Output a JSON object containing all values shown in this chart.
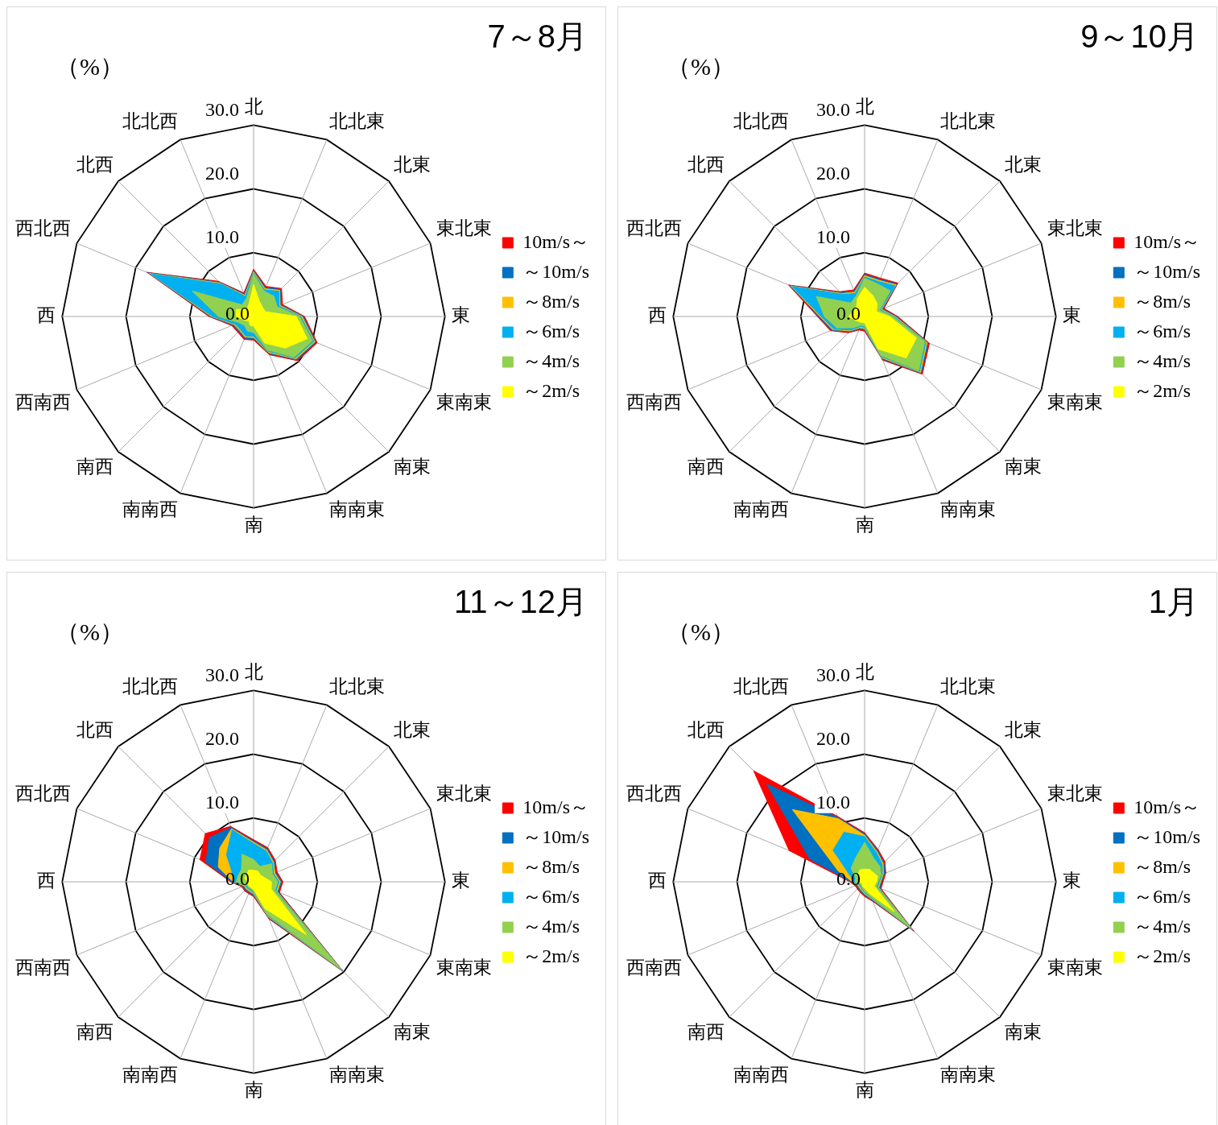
{
  "chart_data": [
    {
      "type": "radar",
      "title": "7～8月",
      "ylabel": "（%）",
      "categories": [
        "北",
        "北北東",
        "北東",
        "東北東",
        "東",
        "東南東",
        "南東",
        "南南東",
        "南",
        "南南西",
        "南西",
        "西南西",
        "西",
        "西北西",
        "北西",
        "北北西"
      ],
      "ylim": [
        0,
        30
      ],
      "yticks": [
        {
          "value": 0,
          "label": "0.0"
        },
        {
          "value": 10,
          "label": "10.0"
        },
        {
          "value": 20,
          "label": "20.0"
        },
        {
          "value": 30,
          "label": "30.0"
        }
      ],
      "grid": true,
      "legend": "right",
      "marker": "none",
      "series": [
        {
          "name": "10m/s～",
          "color": "#ff0000",
          "values": [
            7.4,
            5.1,
            6.2,
            4.9,
            8.0,
            10.8,
            9.8,
            6.5,
            3.7,
            3.9,
            3.5,
            3.7,
            7.0,
            18.1,
            7.8,
            4.0
          ]
        },
        {
          "name": "～10m/s",
          "color": "#0070c0",
          "values": [
            7.2,
            4.9,
            6.0,
            4.7,
            7.8,
            10.6,
            9.6,
            6.3,
            3.5,
            3.7,
            3.3,
            3.5,
            6.8,
            17.9,
            7.6,
            3.8
          ]
        },
        {
          "name": "～8m/s",
          "color": "#ffc000",
          "values": [
            7.0,
            4.7,
            5.8,
            4.5,
            7.6,
            10.4,
            9.4,
            6.1,
            3.3,
            3.5,
            3.1,
            3.3,
            6.6,
            17.7,
            7.4,
            3.6
          ]
        },
        {
          "name": "～6m/s",
          "color": "#00b0f0",
          "values": [
            6.8,
            4.5,
            5.6,
            4.3,
            7.4,
            10.2,
            9.2,
            5.9,
            3.1,
            3.3,
            2.9,
            3.1,
            6.4,
            17.5,
            7.2,
            3.4
          ]
        },
        {
          "name": "～4m/s",
          "color": "#92d050",
          "values": [
            6.6,
            4.3,
            4.5,
            4.0,
            7.2,
            10.0,
            9.0,
            5.7,
            2.5,
            2.5,
            2.0,
            2.5,
            5.5,
            10.4,
            2.6,
            3.0
          ]
        },
        {
          "name": "～2m/s",
          "color": "#ffff00",
          "values": [
            5.0,
            2.5,
            2.0,
            2.0,
            6.7,
            9.1,
            7.0,
            4.5,
            1.5,
            1.5,
            1.0,
            1.5,
            2.7,
            2.9,
            1.5,
            2.0
          ]
        }
      ]
    },
    {
      "type": "radar",
      "title": "9～10月",
      "ylabel": "（%）",
      "categories": [
        "北",
        "北北東",
        "北東",
        "東北東",
        "東",
        "東南東",
        "南東",
        "南南東",
        "南",
        "南南西",
        "南西",
        "西南西",
        "西",
        "西北西",
        "北西",
        "北北西"
      ],
      "ylim": [
        0,
        30
      ],
      "yticks": [
        {
          "value": 0,
          "label": "0.0"
        },
        {
          "value": 10,
          "label": "10.0"
        },
        {
          "value": 20,
          "label": "20.0"
        },
        {
          "value": 30,
          "label": "30.0"
        }
      ],
      "grid": true,
      "legend": "right",
      "marker": "none",
      "series": [
        {
          "name": "10m/s～",
          "color": "#ff0000",
          "values": [
            6.8,
            6.5,
            7.4,
            3.3,
            5.2,
            11.0,
            12.8,
            7.4,
            2.3,
            2.3,
            3.6,
            5.8,
            7.4,
            12.9,
            5.5,
            4.5
          ]
        },
        {
          "name": "～10m/s",
          "color": "#0070c0",
          "values": [
            6.6,
            6.3,
            7.2,
            3.1,
            5.0,
            10.8,
            12.6,
            7.2,
            2.1,
            2.1,
            3.4,
            5.6,
            7.2,
            12.7,
            5.3,
            4.3
          ]
        },
        {
          "name": "～8m/s",
          "color": "#ffc000",
          "values": [
            6.4,
            6.1,
            7.0,
            2.9,
            4.8,
            10.6,
            12.4,
            7.0,
            1.9,
            1.9,
            3.2,
            5.4,
            7.0,
            12.5,
            5.1,
            4.1
          ]
        },
        {
          "name": "～6m/s",
          "color": "#00b0f0",
          "values": [
            6.2,
            5.9,
            6.8,
            2.7,
            4.6,
            10.4,
            12.2,
            6.8,
            1.7,
            1.7,
            3.0,
            5.2,
            6.8,
            12.3,
            4.9,
            3.9
          ]
        },
        {
          "name": "～4m/s",
          "color": "#92d050",
          "values": [
            6.0,
            5.5,
            5.7,
            2.5,
            4.4,
            10.2,
            12.0,
            6.6,
            1.5,
            1.5,
            2.5,
            4.7,
            6.3,
            8.2,
            3.0,
            3.5
          ]
        },
        {
          "name": "～2m/s",
          "color": "#ffff00",
          "values": [
            4.6,
            3.5,
            2.8,
            2.0,
            3.9,
            8.8,
            9.2,
            5.5,
            1.0,
            1.0,
            1.2,
            1.5,
            2.5,
            2.0,
            1.8,
            3.0
          ]
        }
      ]
    },
    {
      "type": "radar",
      "title": "11～12月",
      "ylabel": "（%）",
      "categories": [
        "北",
        "北北東",
        "北東",
        "東北東",
        "東",
        "東南東",
        "南東",
        "南南東",
        "南",
        "南南西",
        "南西",
        "西南西",
        "西",
        "西北西",
        "北西",
        "北北西"
      ],
      "ylim": [
        0,
        30
      ],
      "yticks": [
        {
          "value": 0,
          "label": "0.0"
        },
        {
          "value": 10,
          "label": "10.0"
        },
        {
          "value": 20,
          "label": "20.0"
        },
        {
          "value": 30,
          "label": "30.0"
        }
      ],
      "grid": true,
      "legend": "right",
      "marker": "none",
      "series": [
        {
          "name": "10m/s～",
          "color": "#ff0000",
          "values": [
            6.6,
            5.8,
            4.8,
            4.0,
            4.6,
            4.4,
            20.0,
            6.3,
            2.3,
            2.0,
            2.0,
            2.0,
            3.6,
            9.1,
            10.7,
            9.4
          ]
        },
        {
          "name": "～10m/s",
          "color": "#0070c0",
          "values": [
            6.4,
            5.6,
            4.6,
            3.8,
            4.4,
            4.2,
            19.8,
            6.1,
            2.1,
            1.8,
            1.8,
            1.8,
            3.4,
            8.1,
            9.8,
            9.2
          ]
        },
        {
          "name": "～8m/s",
          "color": "#ffc000",
          "values": [
            6.2,
            5.4,
            4.4,
            3.6,
            4.2,
            4.0,
            19.6,
            5.9,
            1.9,
            1.6,
            1.6,
            1.6,
            3.2,
            6.0,
            7.5,
            9.0
          ]
        },
        {
          "name": "～6m/s",
          "color": "#00b0f0",
          "values": [
            6.0,
            5.2,
            4.2,
            3.4,
            4.0,
            3.8,
            19.4,
            5.7,
            1.7,
            1.4,
            1.4,
            1.4,
            3.0,
            3.6,
            6.0,
            8.8
          ]
        },
        {
          "name": "～4m/s",
          "color": "#92d050",
          "values": [
            3.5,
            2.6,
            4.0,
            3.2,
            3.8,
            3.6,
            19.2,
            5.5,
            1.5,
            1.2,
            1.2,
            1.2,
            2.7,
            2.6,
            2.7,
            4.7
          ]
        },
        {
          "name": "～2m/s",
          "color": "#ffff00",
          "values": [
            1.8,
            1.8,
            1.5,
            1.8,
            2.8,
            3.0,
            11.7,
            4.5,
            1.2,
            1.0,
            1.0,
            1.0,
            1.0,
            1.5,
            1.5,
            2.0
          ]
        }
      ]
    },
    {
      "type": "radar",
      "title": "1月",
      "ylabel": "（%）",
      "categories": [
        "北",
        "北北東",
        "北東",
        "東北東",
        "東",
        "東南東",
        "南東",
        "南南東",
        "南",
        "南南西",
        "南西",
        "西南西",
        "西",
        "西北西",
        "北西",
        "北北西"
      ],
      "ylim": [
        0,
        30
      ],
      "yticks": [
        {
          "value": 0,
          "label": "0.0"
        },
        {
          "value": 10,
          "label": "10.0"
        },
        {
          "value": 20,
          "label": "20.0"
        },
        {
          "value": 30,
          "label": "30.0"
        }
      ],
      "grid": true,
      "legend": "right",
      "marker": "none",
      "series": [
        {
          "name": "10m/s～",
          "color": "#ff0000",
          "values": [
            7.7,
            5.5,
            4.5,
            3.6,
            2.9,
            2.8,
            11.0,
            3.3,
            2.3,
            1.8,
            1.6,
            1.6,
            2.3,
            12.8,
            24.6,
            11.1
          ]
        },
        {
          "name": "～10m/s",
          "color": "#0070c0",
          "values": [
            7.5,
            5.3,
            4.3,
            3.4,
            2.7,
            2.6,
            10.8,
            3.1,
            2.1,
            1.6,
            1.4,
            1.4,
            2.1,
            9.3,
            21.7,
            10.9
          ]
        },
        {
          "name": "～8m/s",
          "color": "#ffc000",
          "values": [
            7.3,
            5.1,
            4.1,
            3.2,
            2.5,
            2.4,
            10.6,
            2.9,
            1.9,
            1.4,
            1.2,
            1.2,
            1.9,
            4.5,
            16.0,
            10.7
          ]
        },
        {
          "name": "～6m/s",
          "color": "#00b0f0",
          "values": [
            7.1,
            4.9,
            3.9,
            3.0,
            2.3,
            2.2,
            10.4,
            2.7,
            1.7,
            1.2,
            1.0,
            1.0,
            1.7,
            2.4,
            7.0,
            8.4
          ]
        },
        {
          "name": "～4m/s",
          "color": "#92d050",
          "values": [
            6.2,
            3.9,
            3.4,
            2.8,
            2.1,
            2.0,
            10.2,
            2.5,
            1.5,
            1.0,
            0.8,
            0.8,
            1.5,
            1.5,
            3.0,
            3.9
          ]
        },
        {
          "name": "～2m/s",
          "color": "#ffff00",
          "values": [
            2.0,
            2.1,
            2.0,
            2.2,
            1.9,
            1.6,
            6.6,
            2.0,
            1.0,
            0.8,
            0.5,
            0.5,
            1.0,
            1.0,
            1.5,
            2.0
          ]
        }
      ]
    }
  ]
}
